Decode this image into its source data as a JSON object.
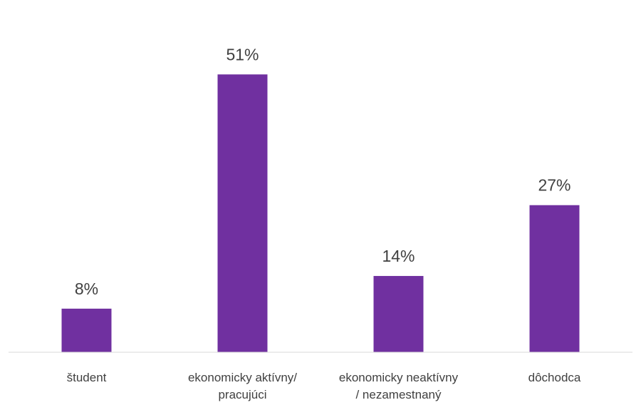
{
  "chart_data": {
    "type": "bar",
    "title": "",
    "xlabel": "",
    "ylabel": "",
    "categories": [
      "študent",
      "ekonomicky aktívny/ pracujúci",
      "ekonomicky neaktívny / nezamestnaný",
      "dôchodca"
    ],
    "category_label_lines": [
      [
        "študent"
      ],
      [
        "ekonomicky aktívny/",
        "pracujúci"
      ],
      [
        "ekonomicky neaktívny",
        "/ nezamestnaný"
      ],
      [
        "dôchodca"
      ]
    ],
    "values": [
      8,
      51,
      14,
      27
    ],
    "value_labels": [
      "8%",
      "51%",
      "14%",
      "27%"
    ],
    "unit": "%",
    "ylim": [
      0,
      65
    ],
    "grid": false,
    "legend": "none",
    "bar_color": "#7030a0",
    "axis_color": "#d9d9d9",
    "text_color": "#404040"
  }
}
